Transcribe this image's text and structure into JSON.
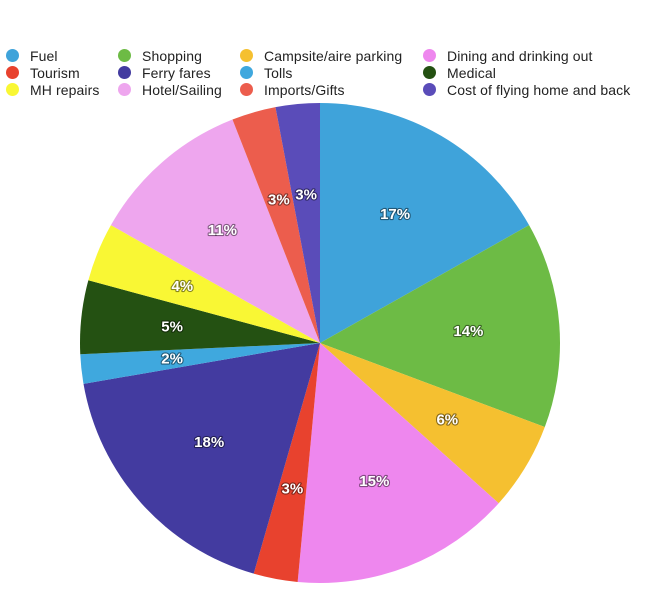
{
  "chart_data": {
    "type": "pie",
    "title": "",
    "legend_position": "top",
    "label_format": "percent",
    "categories": [
      "Fuel",
      "Shopping",
      "Campsite/aire parking",
      "Dining and drinking out",
      "Tourism",
      "Ferry fares",
      "Tolls",
      "Medical",
      "MH repairs",
      "Hotel/Sailing",
      "Imports/Gifts",
      "Cost of flying home and back"
    ],
    "values": [
      17,
      14,
      6,
      15,
      3,
      18,
      2,
      5,
      4,
      11,
      3,
      3
    ],
    "colors": [
      "#3fa3da",
      "#6dbb45",
      "#f5c030",
      "#ee87ee",
      "#e8422e",
      "#433ba0",
      "#3fa8de",
      "#245112",
      "#f9f734",
      "#eea6ee",
      "#ec5d4d",
      "#5a4cb9"
    ],
    "data_labels": [
      "17%",
      "14%",
      "6%",
      "15%",
      "3%",
      "18%",
      "2%",
      "5%",
      "4%",
      "11%",
      "3%",
      "3%"
    ]
  }
}
